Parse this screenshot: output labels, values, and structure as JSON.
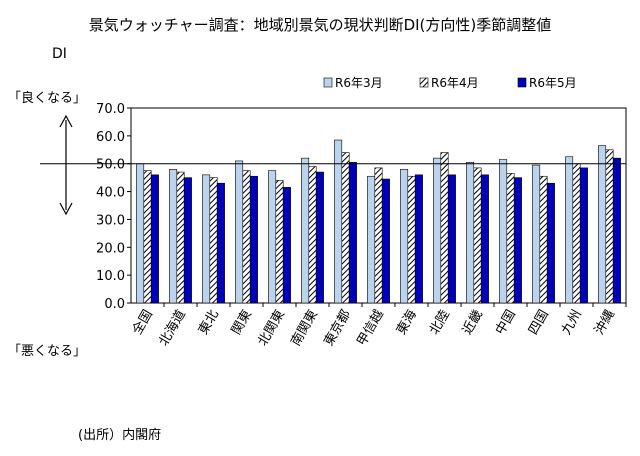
{
  "title": "景気ウォッチャー調査：地域別景気の現状判断DI(方向性)季節調整値",
  "y_unit_label": "DI",
  "good_label": "「良くなる」",
  "bad_label": "「悪くなる」",
  "source": "(出所）内閣府",
  "chart_data": {
    "type": "bar",
    "categories": [
      "全国",
      "北海道",
      "東北",
      "関東",
      "北関東",
      "南関東",
      "東京都",
      "甲信越",
      "東海",
      "北陸",
      "近畿",
      "中国",
      "四国",
      "九州",
      "沖縄"
    ],
    "series": [
      {
        "name": "R6年3月",
        "values": [
          50.0,
          48.0,
          46.0,
          51.0,
          47.5,
          52.0,
          58.5,
          45.5,
          48.0,
          52.0,
          50.5,
          51.5,
          49.5,
          52.5,
          56.5
        ],
        "color": "#bcd3ee"
      },
      {
        "name": "R6年4月",
        "values": [
          47.5,
          47.0,
          45.0,
          47.5,
          44.0,
          49.0,
          54.0,
          48.5,
          45.5,
          54.0,
          48.5,
          46.5,
          45.5,
          50.0,
          55.0
        ],
        "color": "#ffffff"
      },
      {
        "name": "R6年5月",
        "values": [
          46.0,
          45.0,
          43.0,
          45.5,
          41.5,
          47.0,
          50.5,
          44.5,
          46.0,
          46.0,
          46.0,
          45.0,
          43.0,
          48.5,
          52.0
        ],
        "color": "#0000b8"
      }
    ],
    "ylim": [
      0,
      70
    ],
    "yticks": [
      "0.0",
      "10.0",
      "20.0",
      "30.0",
      "40.0",
      "50.0",
      "60.0",
      "70.0"
    ],
    "reference_line": 50,
    "grid": false,
    "legend_position": "top"
  }
}
